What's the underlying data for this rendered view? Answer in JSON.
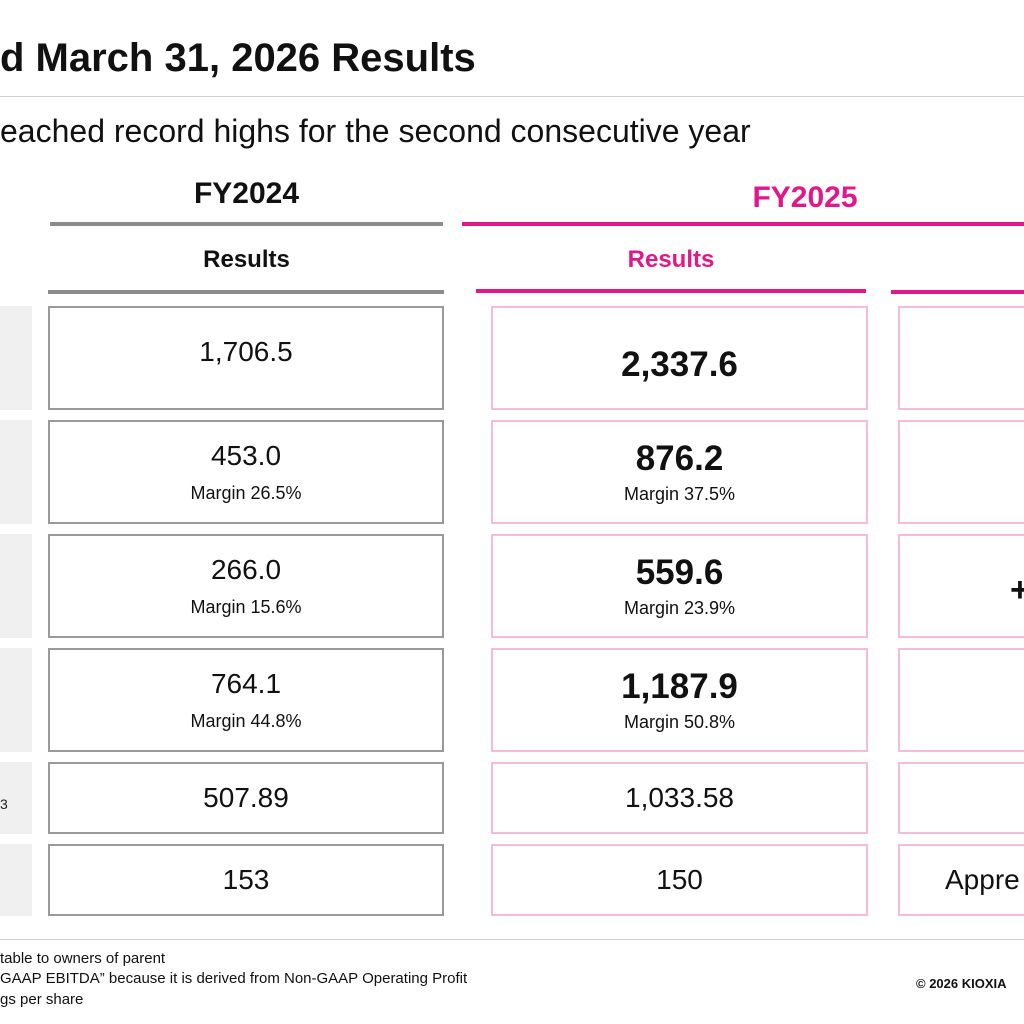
{
  "header": {
    "title": "d March 31, 2026 Results",
    "subtitle": "eached record highs for the second consecutive year"
  },
  "columns": {
    "fy2024": {
      "label": "FY2024",
      "sub_label": "Results"
    },
    "fy2025": {
      "label": "FY2025",
      "sub_label": "Results"
    }
  },
  "rows": [
    {
      "fy2024": {
        "value": "1,706.5",
        "margin": ""
      },
      "fy2025": {
        "value": "2,337.6",
        "margin": ""
      },
      "right_partial": ""
    },
    {
      "fy2024": {
        "value": "453.0",
        "margin": "Margin 26.5%"
      },
      "fy2025": {
        "value": "876.2",
        "margin": "Margin 37.5%"
      },
      "right_partial": ""
    },
    {
      "fy2024": {
        "value": "266.0",
        "margin": "Margin 15.6%"
      },
      "fy2025": {
        "value": "559.6",
        "margin": "Margin 23.9%"
      },
      "right_partial": "+"
    },
    {
      "fy2024": {
        "value": "764.1",
        "margin": "Margin 44.8%"
      },
      "fy2025": {
        "value": "1,187.9",
        "margin": "Margin 50.8%"
      },
      "right_partial": ""
    },
    {
      "fy2024": {
        "value": "507.89",
        "margin": ""
      },
      "fy2025": {
        "value": "1,033.58",
        "margin": ""
      },
      "right_partial": "",
      "label_mark": "3"
    },
    {
      "fy2024": {
        "value": "153",
        "margin": ""
      },
      "fy2025": {
        "value": "150",
        "margin": ""
      },
      "right_partial": "Appre"
    }
  ],
  "footnotes": [
    "table to owners of parent",
    "GAAP EBITDA” because it is derived from Non-GAAP Operating Profit",
    "gs per share"
  ],
  "copyright": "© 2026 KIOXIA",
  "colors": {
    "accent": "#e0188a",
    "fy2024_rule": "#8c8c8c",
    "fy2025_box_border": "#f4bcd9",
    "label_cell_bg": "#f0f0f0"
  }
}
